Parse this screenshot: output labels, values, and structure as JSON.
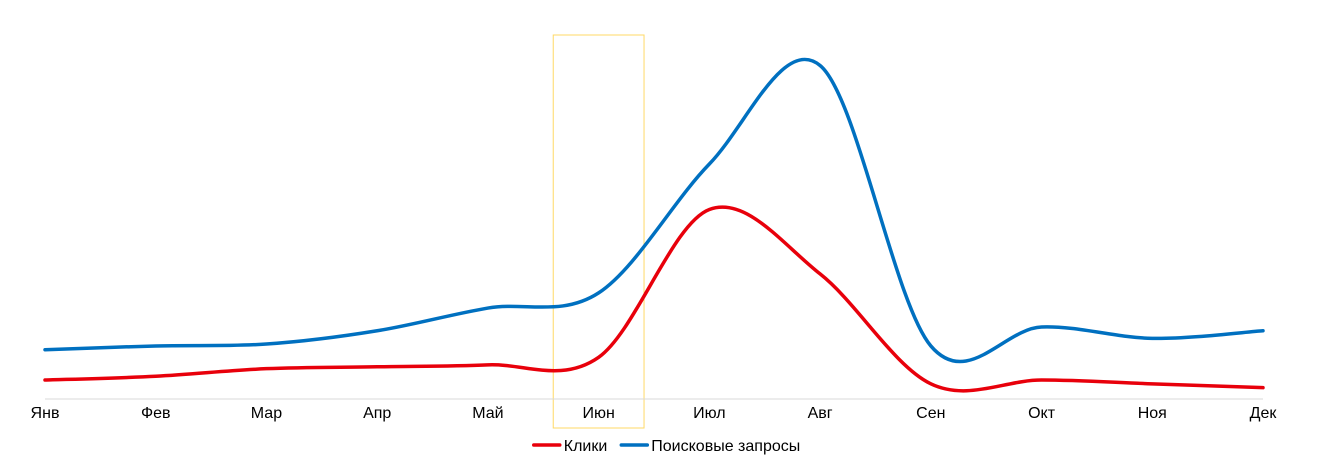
{
  "chart_data": {
    "type": "line",
    "smooth": true,
    "categories": [
      "Янв",
      "Фев",
      "Мар",
      "Апр",
      "Май",
      "Июн",
      "Июл",
      "Авг",
      "Сен",
      "Окт",
      "Ноя",
      "Дек"
    ],
    "series": [
      {
        "name": "Клики",
        "color": "#e8000b",
        "values": [
          5,
          6,
          8,
          8.5,
          9,
          11,
          50,
          33,
          4,
          5,
          4,
          3
        ]
      },
      {
        "name": "Поисковые запросы",
        "color": "#0070c0",
        "values": [
          13,
          14,
          14.5,
          18,
          24,
          28,
          62,
          88,
          14,
          19,
          16,
          18
        ]
      }
    ],
    "ylim": [
      0,
      100
    ],
    "y_axis_visible": false,
    "gridlines": false,
    "legend_position": "bottom",
    "highlight": {
      "category": "Июн",
      "color": "#ffd966"
    }
  }
}
